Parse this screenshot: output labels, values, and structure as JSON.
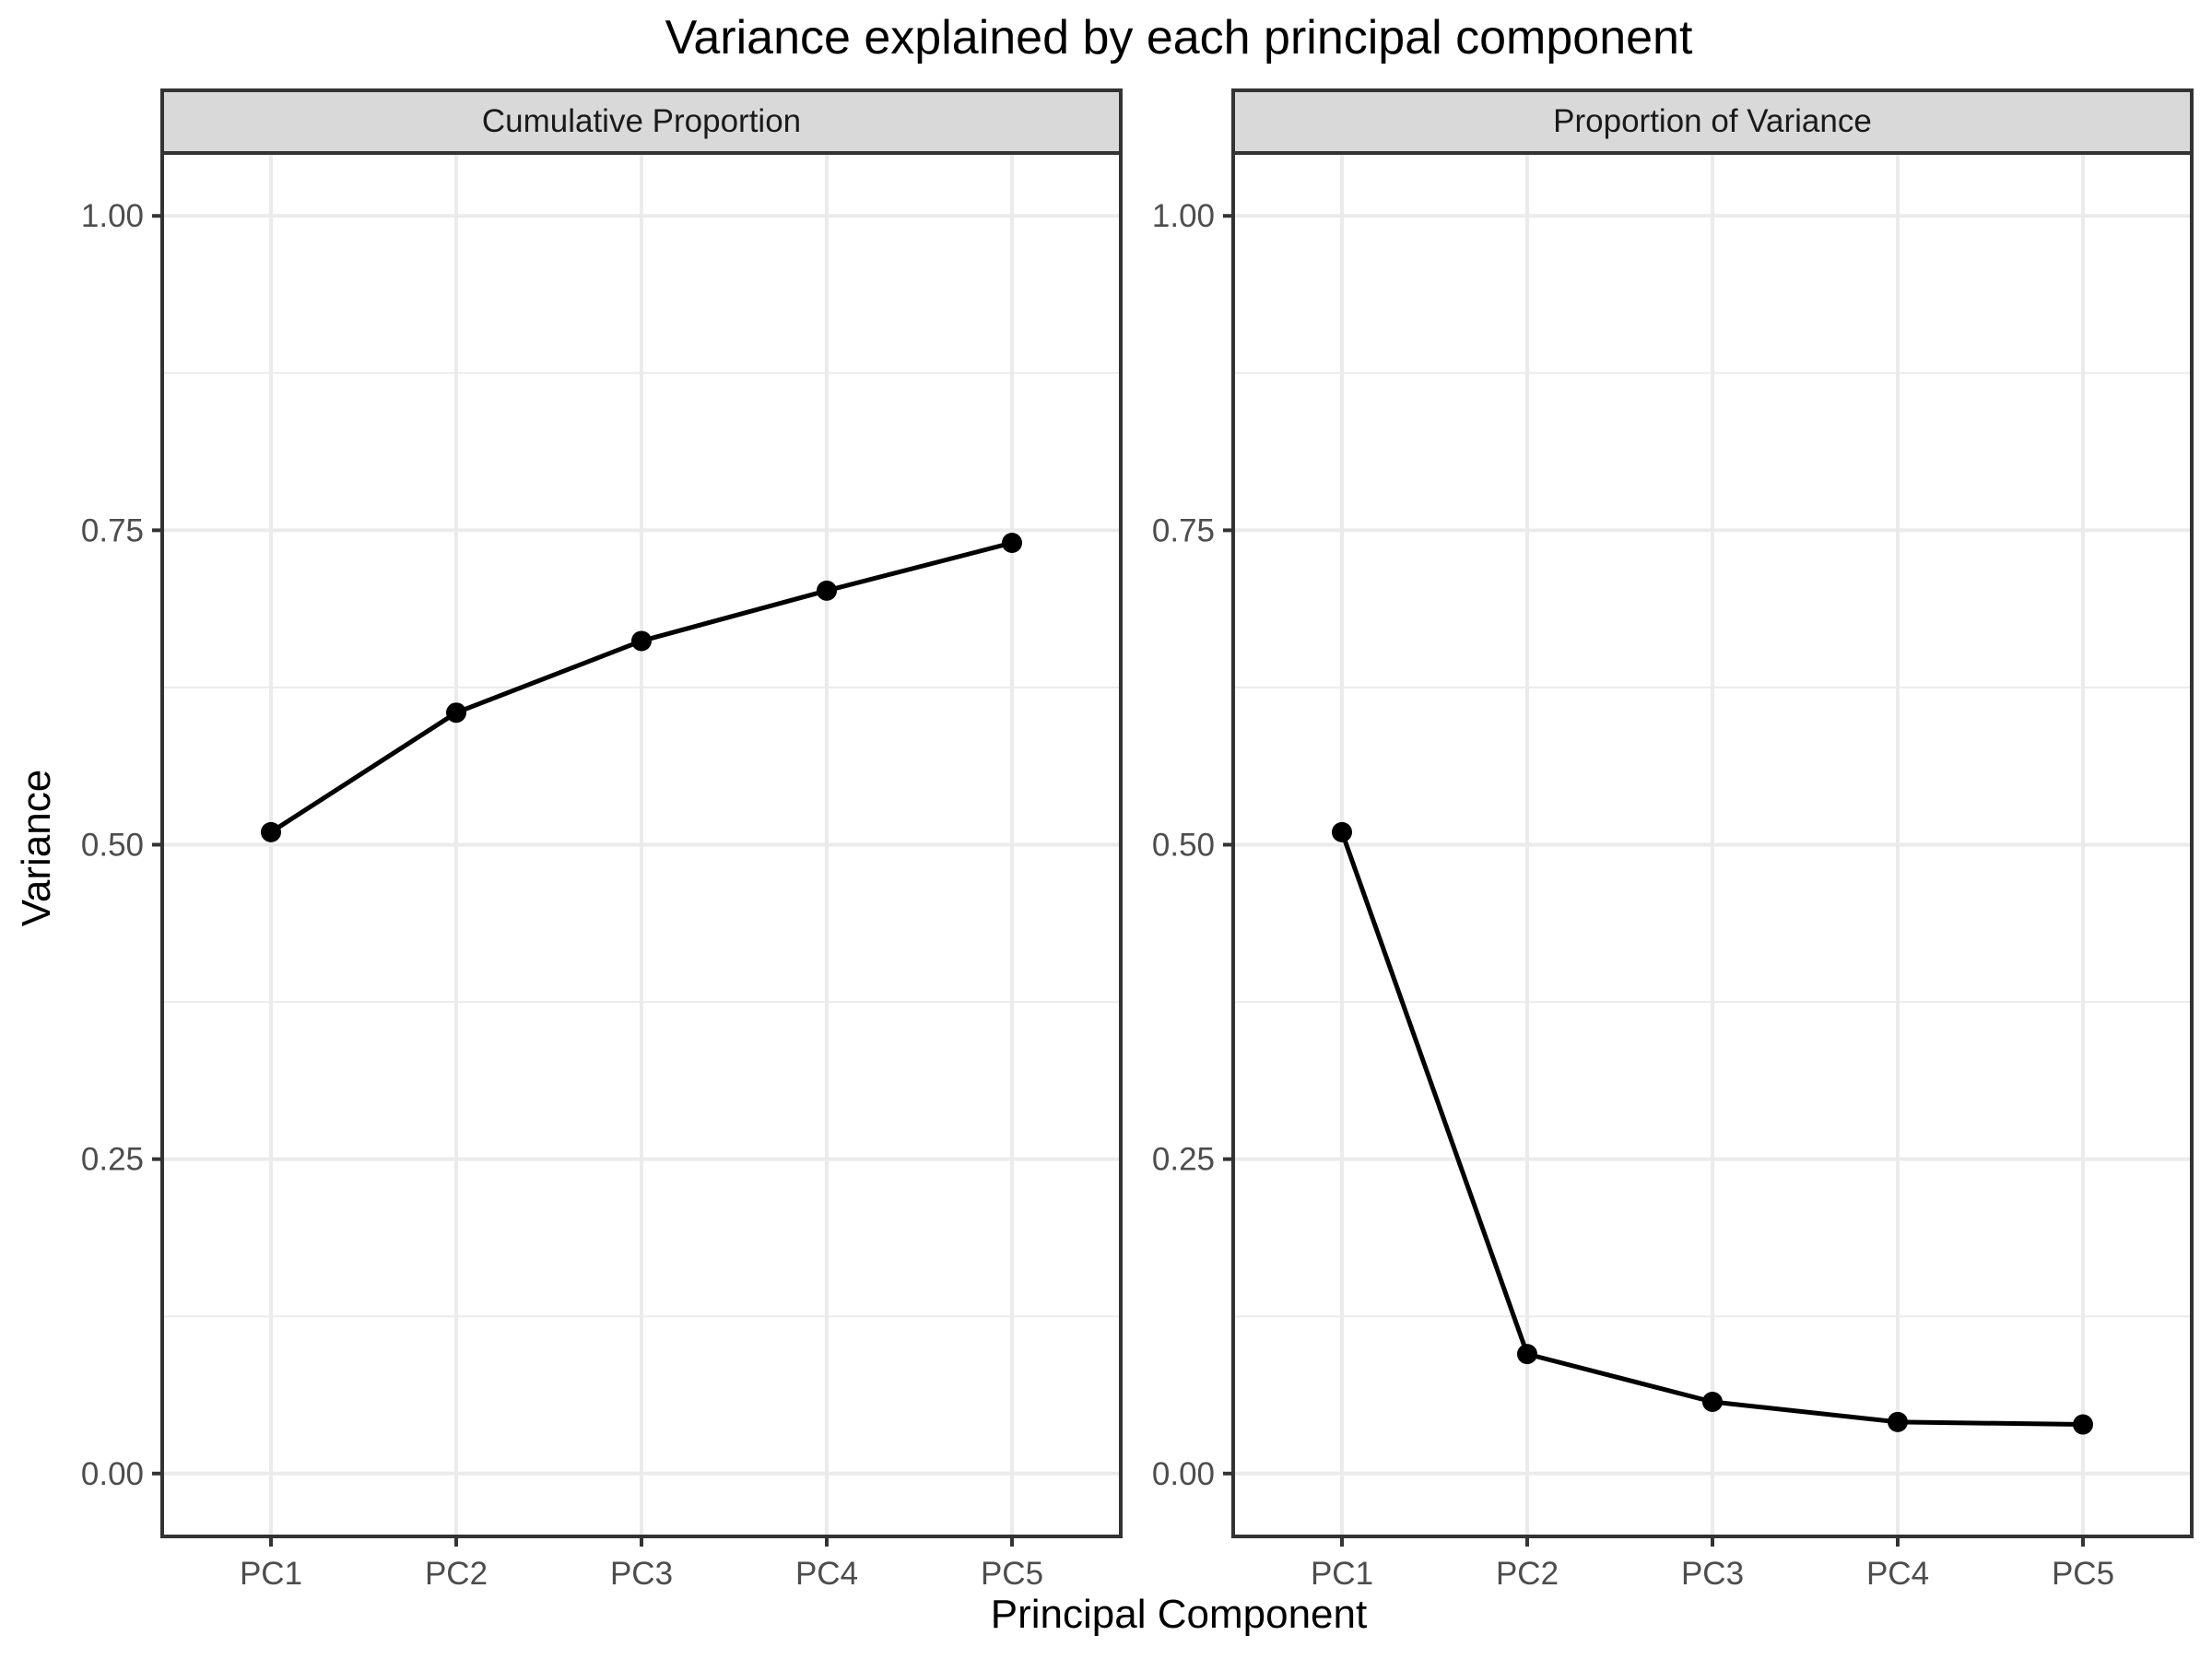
{
  "chart_data": {
    "type": "line",
    "title": "Variance explained by each principal component",
    "xlabel": "Principal Component",
    "ylabel": "Variance",
    "categories": [
      "PC1",
      "PC2",
      "PC3",
      "PC4",
      "PC5"
    ],
    "ylim": [
      -0.05,
      1.05
    ],
    "yticks": [
      0.0,
      0.25,
      0.5,
      0.75,
      1.0
    ],
    "ytick_labels": [
      "0.00",
      "0.25",
      "0.50",
      "0.75",
      "1.00"
    ],
    "grid": true,
    "colors": {
      "line": "#000000",
      "strip": "#d9d9d9",
      "grid": "#ebebeb"
    },
    "panels": [
      {
        "label": "Cumulative Proportion",
        "values": [
          0.51,
          0.605,
          0.662,
          0.702,
          0.74
        ]
      },
      {
        "label": "Proportion of Variance",
        "values": [
          0.51,
          0.095,
          0.057,
          0.041,
          0.039
        ]
      }
    ]
  }
}
